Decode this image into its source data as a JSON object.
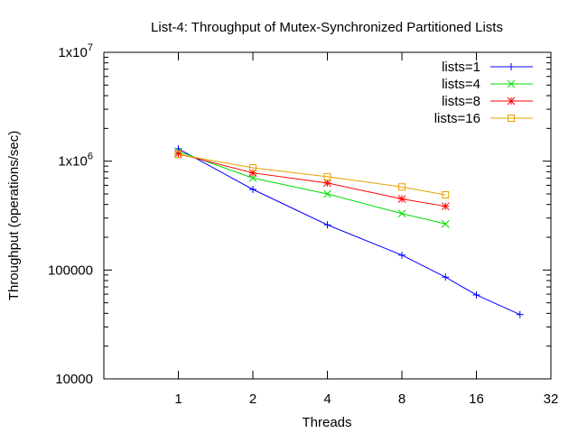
{
  "chart_data": {
    "type": "line",
    "title": "List-4: Throughput of Mutex-Synchronized Partitioned Lists",
    "xlabel": "Threads",
    "ylabel": "Throughput (operations/sec)",
    "x_scale": "log2",
    "y_scale": "log10",
    "xlim": [
      0.5,
      32
    ],
    "ylim": [
      10000,
      10000000
    ],
    "x_ticks": [
      1,
      2,
      4,
      8,
      16,
      32
    ],
    "x_tick_labels": [
      "1",
      "2",
      "4",
      "8",
      "16",
      "32"
    ],
    "y_ticks": [
      10000,
      100000,
      1000000,
      10000000
    ],
    "y_tick_labels": [
      {
        "base": "10000",
        "exp": ""
      },
      {
        "base": "100000",
        "exp": ""
      },
      {
        "base": "1x10",
        "exp": "6"
      },
      {
        "base": "1x10",
        "exp": "7"
      }
    ],
    "legend_position": "top-right",
    "grid": false,
    "series": [
      {
        "name": "lists=1",
        "color": "#0000ff",
        "marker": "plus",
        "points": [
          [
            1,
            1300000
          ],
          [
            2,
            550000
          ],
          [
            4,
            260000
          ],
          [
            8,
            137000
          ],
          [
            12,
            86000
          ],
          [
            16,
            59000
          ],
          [
            24,
            39000
          ]
        ]
      },
      {
        "name": "lists=4",
        "color": "#00dd00",
        "marker": "x",
        "points": [
          [
            1,
            1230000
          ],
          [
            2,
            700000
          ],
          [
            4,
            500000
          ],
          [
            8,
            330000
          ],
          [
            12,
            265000
          ]
        ]
      },
      {
        "name": "lists=8",
        "color": "#ff0000",
        "marker": "star",
        "points": [
          [
            1,
            1170000
          ],
          [
            2,
            780000
          ],
          [
            4,
            630000
          ],
          [
            8,
            450000
          ],
          [
            12,
            385000
          ]
        ]
      },
      {
        "name": "lists=16",
        "color": "#e6a000",
        "marker": "square",
        "points": [
          [
            1,
            1150000
          ],
          [
            2,
            870000
          ],
          [
            4,
            720000
          ],
          [
            8,
            580000
          ],
          [
            12,
            490000
          ]
        ]
      }
    ]
  }
}
